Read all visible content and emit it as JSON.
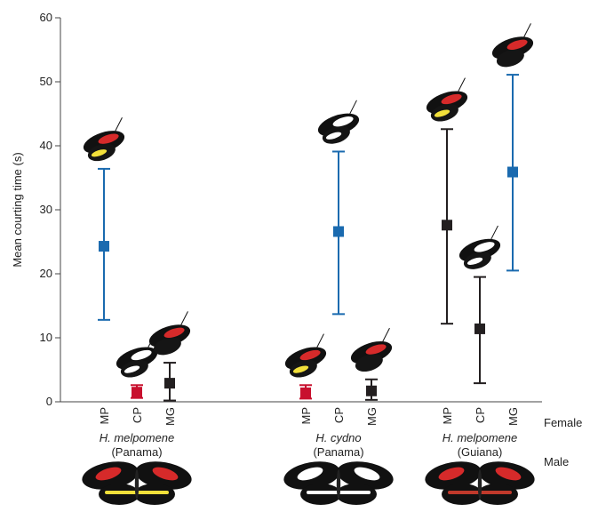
{
  "chart_data": {
    "type": "scatter",
    "ylabel": "Mean courting time (s)",
    "ylim": [
      0,
      60
    ],
    "yticks": [
      0,
      10,
      20,
      30,
      40,
      50,
      60
    ],
    "row_labels": {
      "female": "Female",
      "male": "Male"
    },
    "groups": [
      {
        "species": "H. melpomene",
        "region": "(Panama)"
      },
      {
        "species": "H. cydno",
        "region": "(Panama)"
      },
      {
        "species": "H. melpomene",
        "region": "(Guiana)"
      }
    ],
    "points": [
      {
        "group": 0,
        "category": "MP",
        "mean": 24.3,
        "low": 12.8,
        "high": 36.4,
        "color": "#1a6aaf"
      },
      {
        "group": 0,
        "category": "CP",
        "mean": 1.5,
        "low": 0.6,
        "high": 2.6,
        "color": "#c8102e"
      },
      {
        "group": 0,
        "category": "MG",
        "mean": 2.9,
        "low": 0.2,
        "high": 6.1,
        "color": "#231f20"
      },
      {
        "group": 1,
        "category": "MP",
        "mean": 1.4,
        "low": 0.5,
        "high": 2.6,
        "color": "#c8102e"
      },
      {
        "group": 1,
        "category": "CP",
        "mean": 26.6,
        "low": 13.7,
        "high": 39.1,
        "color": "#1a6aaf"
      },
      {
        "group": 1,
        "category": "MG",
        "mean": 1.7,
        "low": 0.3,
        "high": 3.5,
        "color": "#231f20"
      },
      {
        "group": 2,
        "category": "MP",
        "mean": 27.6,
        "low": 12.2,
        "high": 42.6,
        "color": "#231f20"
      },
      {
        "group": 2,
        "category": "CP",
        "mean": 11.4,
        "low": 2.9,
        "high": 19.5,
        "color": "#231f20"
      },
      {
        "group": 2,
        "category": "MG",
        "mean": 35.9,
        "low": 20.5,
        "high": 51.1,
        "color": "#1a6aaf"
      }
    ]
  },
  "butterflies": {
    "female": [
      {
        "point": 0,
        "name": "red-yellow-butterfly"
      },
      {
        "point": 1,
        "name": "white-band-butterfly"
      },
      {
        "point": 2,
        "name": "red-band-butterfly"
      },
      {
        "point": 3,
        "name": "red-yellow-butterfly"
      },
      {
        "point": 4,
        "name": "white-band-butterfly"
      },
      {
        "point": 5,
        "name": "red-band-butterfly"
      },
      {
        "point": 6,
        "name": "red-yellow-butterfly"
      },
      {
        "point": 7,
        "name": "white-band-butterfly"
      },
      {
        "point": 8,
        "name": "red-band-butterfly"
      }
    ],
    "male": [
      {
        "group": 0,
        "name": "male-red-yellow-butterfly"
      },
      {
        "group": 1,
        "name": "male-white-butterfly"
      },
      {
        "group": 2,
        "name": "male-red-band-butterfly"
      }
    ]
  }
}
